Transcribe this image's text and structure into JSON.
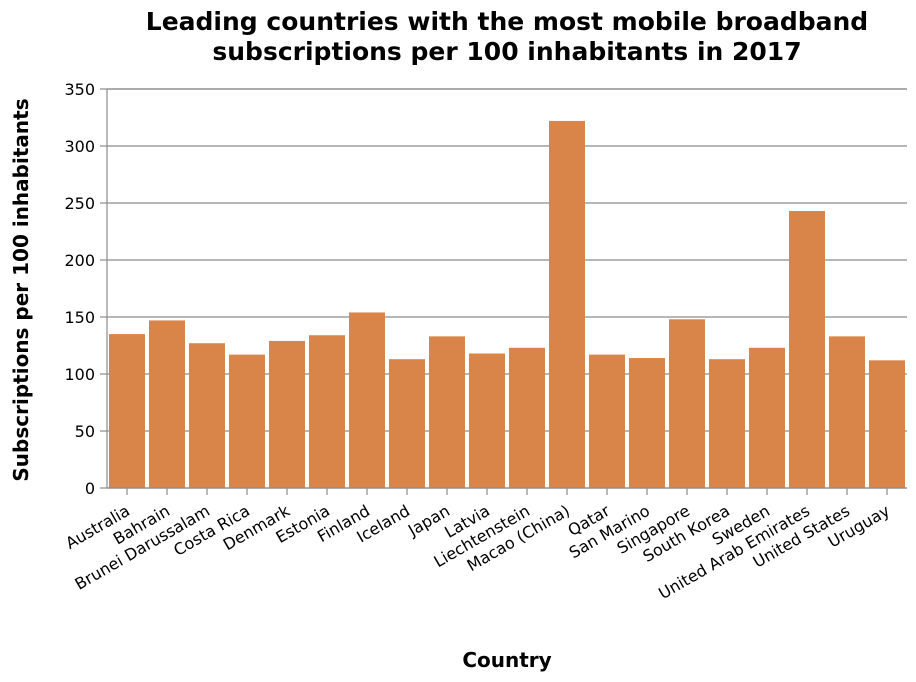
{
  "chart_data": {
    "type": "bar",
    "title": "Leading countries with the most mobile broadband subscriptions per 100 inhabitants in 2017",
    "title_lines": [
      "Leading countries with the most mobile broadband",
      "subscriptions per 100 inhabitants in 2017"
    ],
    "xlabel": "Country",
    "ylabel": "Subscriptions per 100 inhabitants",
    "ylim": [
      0,
      350
    ],
    "yticks": [
      0,
      50,
      100,
      150,
      200,
      250,
      300,
      350
    ],
    "grid": true,
    "bar_color": "#d9854a",
    "categories": [
      "Australia",
      "Bahrain",
      "Brunei Darussalam",
      "Costa Rica",
      "Denmark",
      "Estonia",
      "Finland",
      "Iceland",
      "Japan",
      "Latvia",
      "Liechtenstein",
      "Macao (China)",
      "Qatar",
      "San Marino",
      "Singapore",
      "South Korea",
      "Sweden",
      "United Arab Emirates",
      "United States",
      "Uruguay"
    ],
    "values": [
      135,
      147,
      127,
      117,
      129,
      134,
      154,
      113,
      133,
      118,
      123,
      322,
      117,
      114,
      148,
      113,
      123,
      243,
      133,
      112
    ]
  }
}
